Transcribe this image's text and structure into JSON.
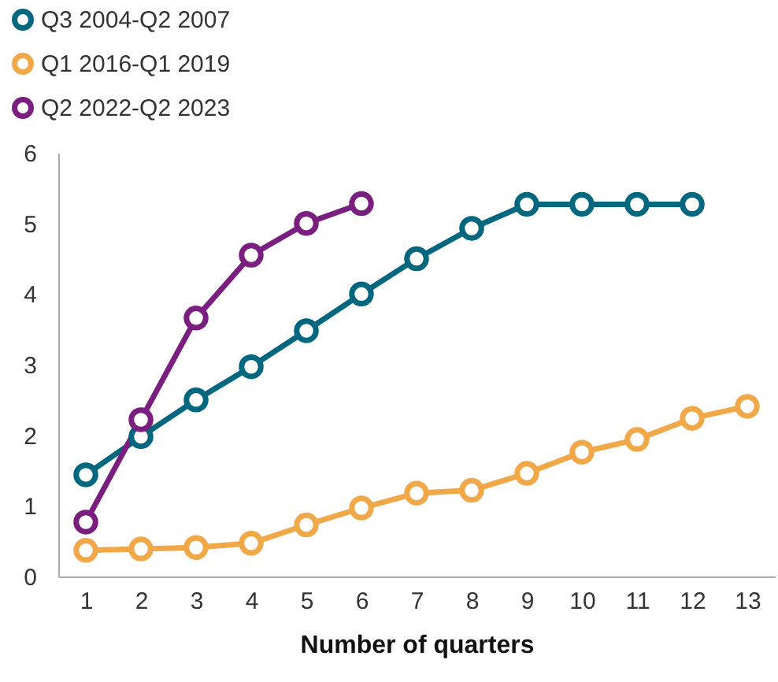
{
  "chart_data": {
    "type": "line",
    "xlabel": "Number of quarters",
    "x": [
      1,
      2,
      3,
      4,
      5,
      6,
      7,
      8,
      9,
      10,
      11,
      12,
      13
    ],
    "xlim": [
      0.5,
      13.5
    ],
    "xticks": [
      1,
      2,
      3,
      4,
      5,
      6,
      7,
      8,
      9,
      10,
      11,
      12,
      13
    ],
    "series": [
      {
        "name": "Q3 2004-Q2 2007",
        "color": "#00677f",
        "values": [
          1.44,
          1.98,
          2.5,
          2.97,
          3.48,
          4.0,
          4.5,
          4.93,
          5.27,
          5.27,
          5.27,
          5.27,
          null
        ]
      },
      {
        "name": "Q1 2016-Q1 2019",
        "color": "#f0a848",
        "values": [
          0.37,
          0.39,
          0.41,
          0.47,
          0.73,
          0.97,
          1.18,
          1.22,
          1.46,
          1.76,
          1.94,
          2.24,
          2.41
        ]
      },
      {
        "name": "Q2 2022-Q2 2023",
        "color": "#7a1f7f",
        "values": [
          0.77,
          2.22,
          3.66,
          4.55,
          5.0,
          5.28,
          null,
          null,
          null,
          null,
          null,
          null,
          null
        ]
      }
    ],
    "ylim": [
      0,
      6
    ],
    "yticks": [
      0,
      1,
      2,
      3,
      4,
      5,
      6
    ],
    "grid": false,
    "legend": "top left",
    "marker": "circle",
    "line_style": "solid"
  }
}
